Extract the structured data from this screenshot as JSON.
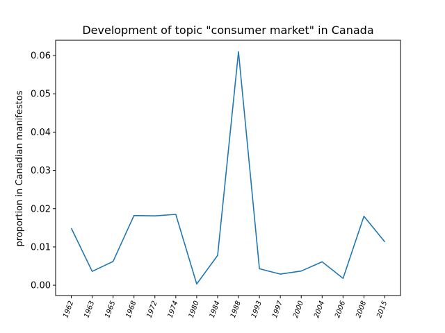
{
  "chart_data": {
    "type": "line",
    "title": "Development of topic \"consumer market\" in Canada",
    "xlabel": "",
    "ylabel": "proportion in Canadian manifestos",
    "categories": [
      "1962",
      "1963",
      "1965",
      "1968",
      "1972",
      "1974",
      "1980",
      "1984",
      "1988",
      "1993",
      "1997",
      "2000",
      "2004",
      "2006",
      "2008",
      "2015"
    ],
    "series": [
      {
        "values": [
          0.0149,
          0.0036,
          0.0062,
          0.0182,
          0.0181,
          0.0185,
          0.0003,
          0.0078,
          0.061,
          0.0043,
          0.0029,
          0.0037,
          0.0061,
          0.0018,
          0.018,
          0.0113
        ],
        "color": "#1f77b4"
      }
    ],
    "yticks": [
      "0.00",
      "0.01",
      "0.02",
      "0.03",
      "0.04",
      "0.05",
      "0.06"
    ],
    "ylim": [
      -0.0027,
      0.064
    ],
    "grid": false,
    "legend": "none"
  }
}
